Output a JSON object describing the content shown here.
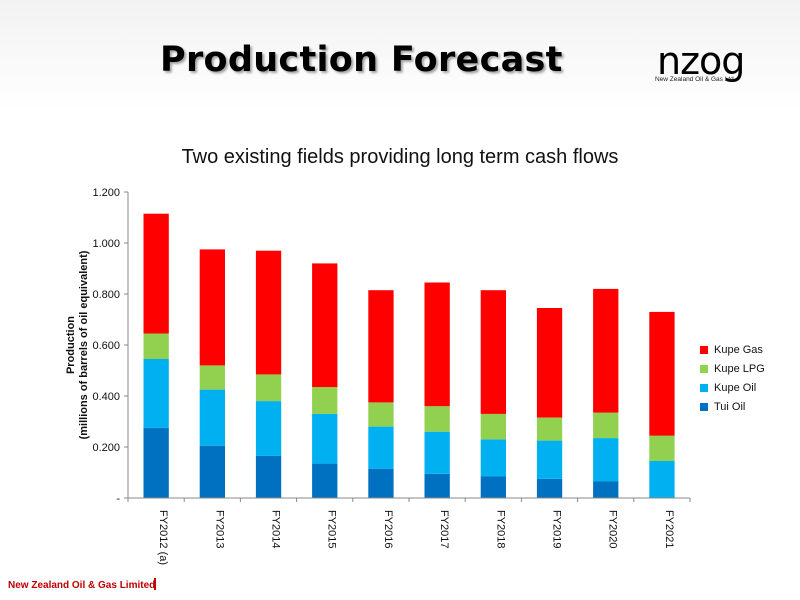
{
  "slide": {
    "title": "Production Forecast",
    "logo_text": "nzog",
    "logo_tagline": "New Zealand Oil & Gas Ltd",
    "footer": "New Zealand Oil & Gas Limited"
  },
  "chart_data": {
    "type": "bar",
    "stacked": true,
    "title": "Two existing fields providing long term cash flows",
    "ylabel": "Production\n(millions of barrels of oil equivalent)",
    "ylim": [
      0,
      1.2
    ],
    "yticks": [
      "-",
      "0.200",
      "0.400",
      "0.600",
      "0.800",
      "1.000",
      "1.200"
    ],
    "grid": false,
    "legend_position": "right",
    "categories": [
      "FY2012 (a)",
      "FY2013",
      "FY2014",
      "FY2015",
      "FY2016",
      "FY2017",
      "FY2018",
      "FY2019",
      "FY2020",
      "FY2021"
    ],
    "series": [
      {
        "name": "Tui Oil",
        "color": "#0070c0",
        "values": [
          0.275,
          0.205,
          0.165,
          0.135,
          0.115,
          0.095,
          0.085,
          0.075,
          0.065,
          0.0
        ]
      },
      {
        "name": "Kupe Oil",
        "color": "#00b0f0",
        "values": [
          0.27,
          0.22,
          0.215,
          0.195,
          0.165,
          0.165,
          0.145,
          0.15,
          0.17,
          0.145
        ]
      },
      {
        "name": "Kupe LPG",
        "color": "#92d050",
        "values": [
          0.1,
          0.095,
          0.105,
          0.105,
          0.095,
          0.1,
          0.1,
          0.09,
          0.1,
          0.1
        ]
      },
      {
        "name": "Kupe Gas",
        "color": "#ff0000",
        "values": [
          0.47,
          0.455,
          0.485,
          0.485,
          0.44,
          0.485,
          0.485,
          0.43,
          0.485,
          0.485
        ]
      }
    ]
  }
}
